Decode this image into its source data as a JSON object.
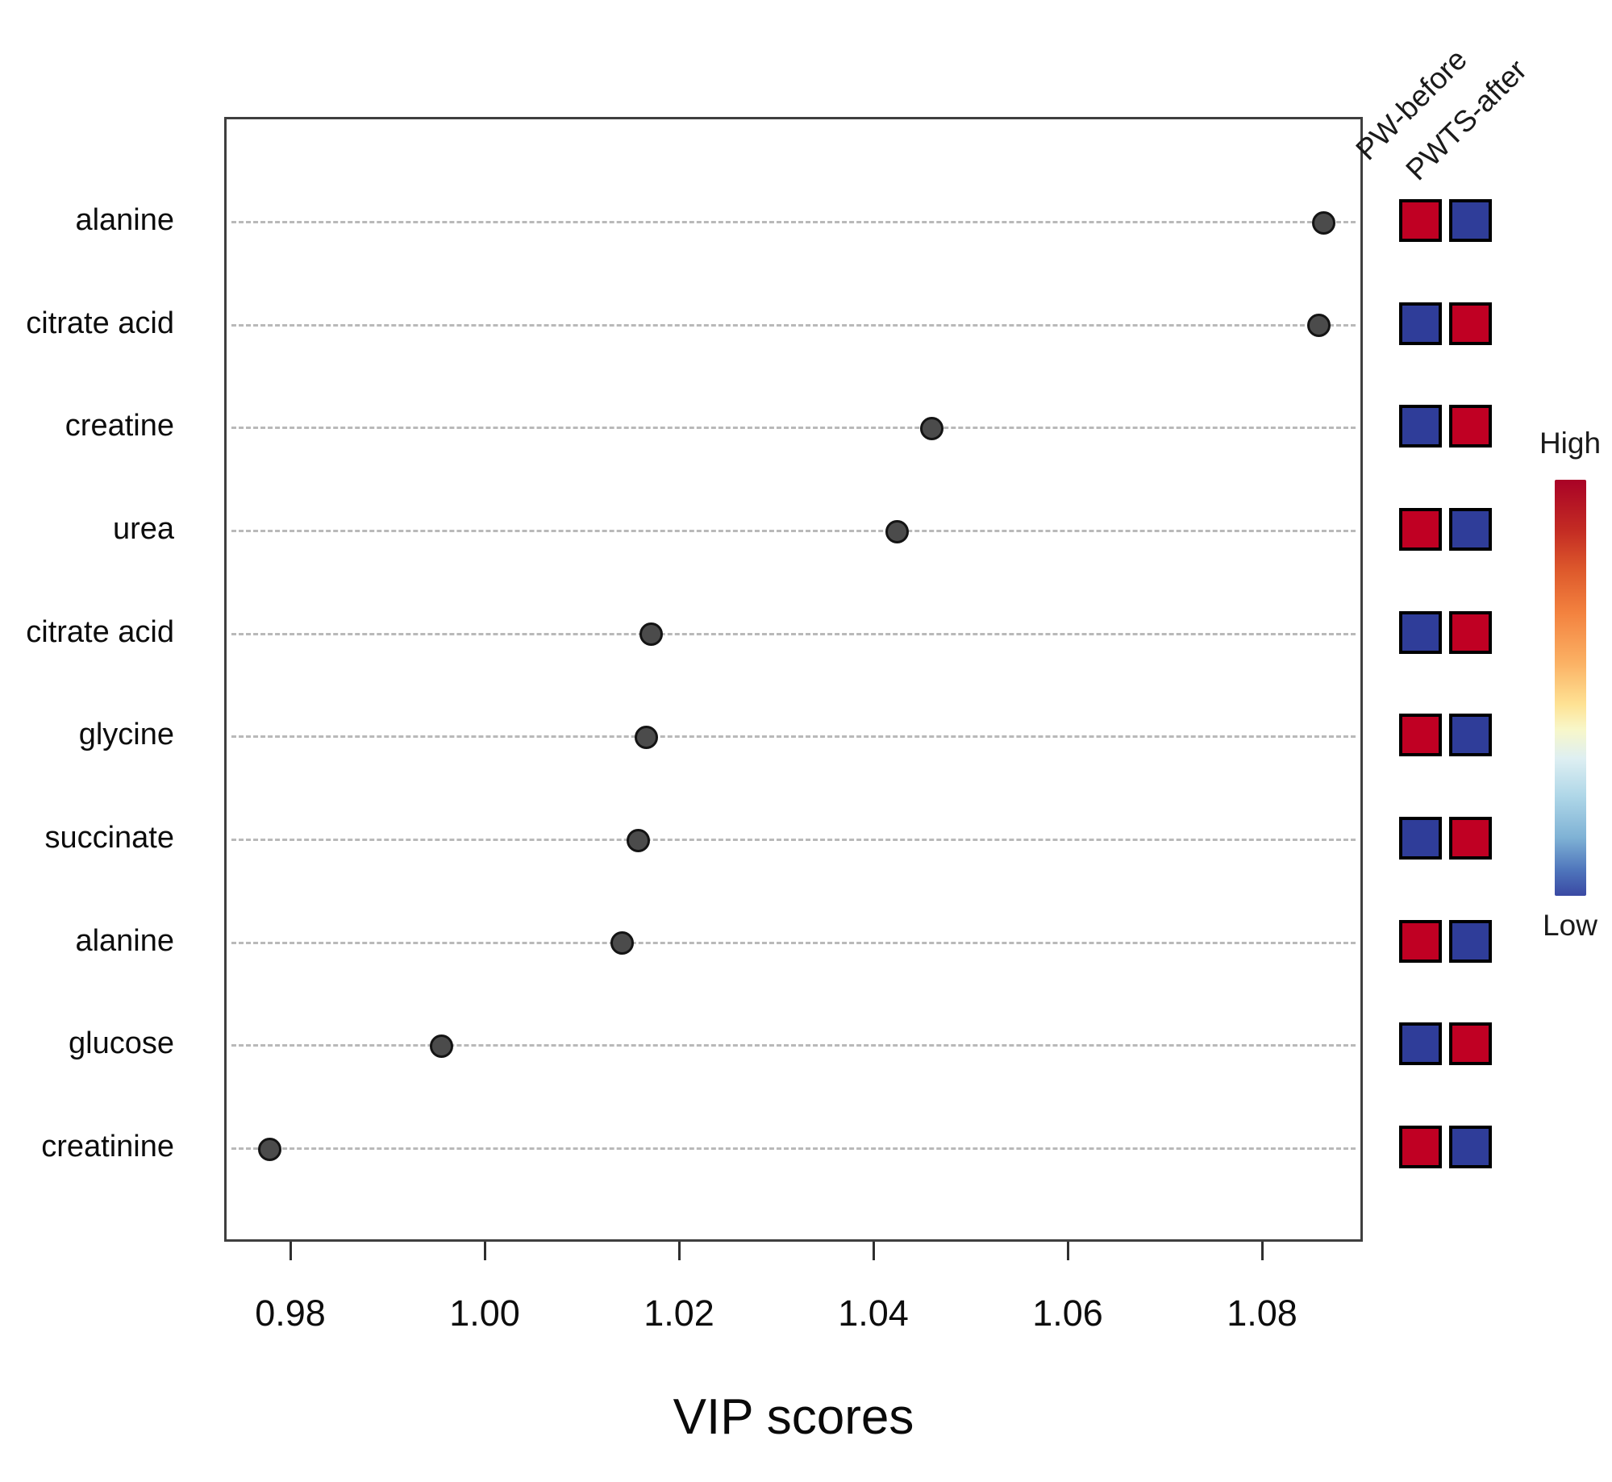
{
  "figure": {
    "title": "VIP scores",
    "heatmap_columns": [
      "PW-before",
      "PWTS-after"
    ],
    "legend": {
      "high_label": "High",
      "low_label": "Low",
      "gradient_stops": [
        "#A90226 0%",
        "#C32B23 12%",
        "#DE5A2C 22%",
        "#F3823F 32%",
        "#FBB164 44%",
        "#FEE294 54%",
        "#F8F7C9 60%",
        "#DEEFF2 67%",
        "#AFD7E8 76%",
        "#7FB2D5 86%",
        "#4E74BB 94%",
        "#3A49A3 100%"
      ]
    }
  },
  "chart_data": {
    "type": "scatter",
    "subtype": "horizontal-dot-plot-with-heatmap",
    "xlabel": "VIP scores",
    "ylabel": "",
    "xlim": [
      0.973,
      1.09
    ],
    "x_tick_values": [
      0.98,
      1.0,
      1.02,
      1.04,
      1.06,
      1.08
    ],
    "x_tick_labels": [
      "0.98",
      "1.00",
      "1.02",
      "1.04",
      "1.06",
      "1.08"
    ],
    "grid": "dashed-horizontal",
    "legend_position": "right",
    "marker": {
      "shape": "circle",
      "fill": "#4b4b4b",
      "stroke": "#141414"
    },
    "heatmap_colors": {
      "high": "#C00023",
      "low": "#2F3D99"
    },
    "features": [
      {
        "label": "alanine",
        "vip": 1.0861,
        "heatmap": [
          "high",
          "low"
        ]
      },
      {
        "label": "citrate acid",
        "vip": 1.0856,
        "heatmap": [
          "low",
          "high"
        ]
      },
      {
        "label": "creatine",
        "vip": 1.0458,
        "heatmap": [
          "low",
          "high"
        ]
      },
      {
        "label": "urea",
        "vip": 1.0422,
        "heatmap": [
          "high",
          "low"
        ]
      },
      {
        "label": "citrate acid",
        "vip": 1.0169,
        "heatmap": [
          "low",
          "high"
        ]
      },
      {
        "label": "glycine",
        "vip": 1.0164,
        "heatmap": [
          "high",
          "low"
        ]
      },
      {
        "label": "succinate",
        "vip": 1.0156,
        "heatmap": [
          "low",
          "high"
        ]
      },
      {
        "label": "alanine",
        "vip": 1.0139,
        "heatmap": [
          "high",
          "low"
        ]
      },
      {
        "label": "glucose",
        "vip": 0.9953,
        "heatmap": [
          "low",
          "high"
        ]
      },
      {
        "label": "creatinine",
        "vip": 0.9776,
        "heatmap": [
          "high",
          "low"
        ]
      }
    ]
  }
}
